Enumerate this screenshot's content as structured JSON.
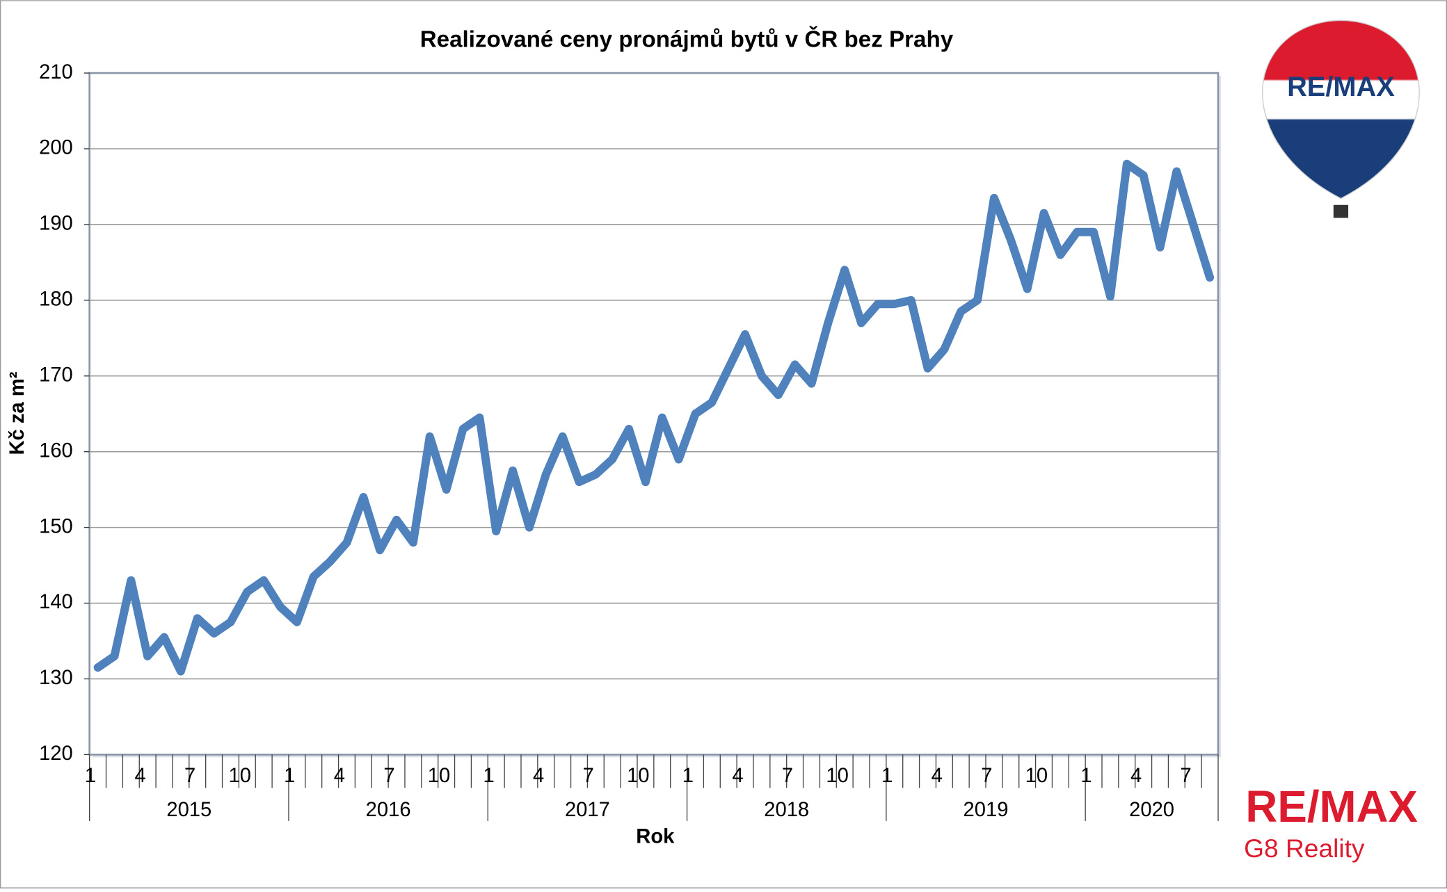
{
  "chart_data": {
    "type": "line",
    "title": "Realizované ceny pronájmů bytů v ČR bez Prahy",
    "y_label": "Kč za m²",
    "x_label": "Rok",
    "categories": [
      "1",
      null,
      null,
      "4",
      null,
      null,
      "7",
      null,
      null,
      "10",
      null,
      null,
      "1",
      null,
      null,
      "4",
      null,
      null,
      "7",
      null,
      null,
      "10",
      null,
      null,
      "1",
      null,
      null,
      "4",
      null,
      null,
      "7",
      null,
      null,
      "10",
      null,
      null,
      "1",
      null,
      null,
      "4",
      null,
      null,
      "7",
      null,
      null,
      "10",
      null,
      null,
      "1",
      null,
      null,
      "4",
      null,
      null,
      "7",
      null,
      null,
      "10",
      null,
      null,
      "1",
      null,
      null,
      "4",
      null,
      null,
      "7",
      null
    ],
    "years": [
      "2015",
      "2016",
      "2017",
      "2018",
      "2019",
      "2020"
    ],
    "series": [
      {
        "name": "Kč za m²",
        "color": "#4f81bd",
        "values": [
          131.5,
          133,
          143,
          133,
          135.5,
          131,
          138,
          136,
          137.5,
          141.5,
          143,
          139.5,
          137.5,
          143.5,
          145.5,
          148,
          154,
          147,
          151,
          148,
          162,
          155,
          163,
          164.5,
          149.5,
          157.5,
          150,
          157,
          162,
          156,
          157,
          159,
          163,
          156,
          164.5,
          159,
          165,
          166.5,
          171,
          175.5,
          170,
          167.5,
          171.5,
          169,
          177,
          184,
          177,
          179.5,
          179.5,
          180,
          171,
          173.5,
          178.5,
          180,
          193.5,
          188,
          181.5,
          191.5,
          186,
          189,
          189,
          180.5,
          198,
          196.5,
          187,
          197,
          190,
          183
        ]
      }
    ],
    "ylim": [
      120,
      210
    ],
    "yticks": [
      120,
      130,
      140,
      150,
      160,
      170,
      180,
      190,
      200,
      210
    ],
    "grid": true
  },
  "logo": {
    "balloon_text": "RE/MAX",
    "brand": "RE/MAX",
    "office": "G8 Reality"
  }
}
